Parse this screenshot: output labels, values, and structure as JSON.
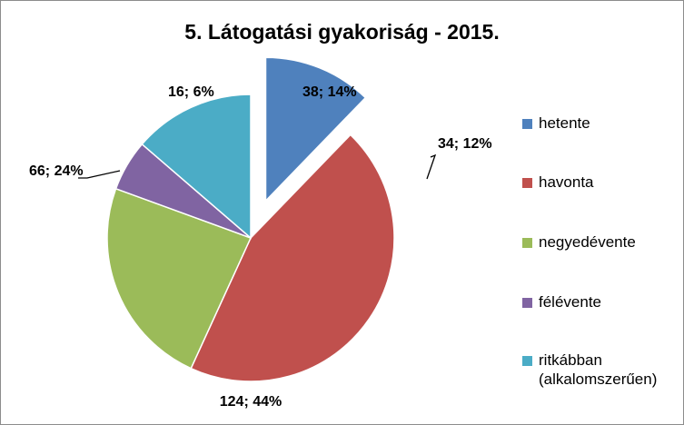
{
  "chart_data": {
    "type": "pie",
    "title": "5. Látogatási gyakoriság - 2015.",
    "slices": [
      {
        "name": "hetente",
        "value": 34,
        "percent": "12%",
        "label": "34; 12%",
        "color": "#4f81bd",
        "exploded": true
      },
      {
        "name": "havonta",
        "value": 124,
        "percent": "44%",
        "label": "124; 44%",
        "color": "#c0504d",
        "exploded": false
      },
      {
        "name": "negyedévente",
        "value": 66,
        "percent": "24%",
        "label": "66; 24%",
        "color": "#9bbb59",
        "exploded": false
      },
      {
        "name": "félévente",
        "value": 16,
        "percent": "6%",
        "label": "16; 6%",
        "color": "#8064a2",
        "exploded": false
      },
      {
        "name": "ritkábban (alkalomszerűen)",
        "value": 38,
        "percent": "14%",
        "label": "38; 14%",
        "color": "#4bacc6",
        "exploded": false
      }
    ],
    "legend": {
      "position": "right",
      "entries": [
        "hetente",
        "havonta",
        "negyedévente",
        "félévente",
        "ritkábban (alkalomszerűen)"
      ]
    }
  }
}
